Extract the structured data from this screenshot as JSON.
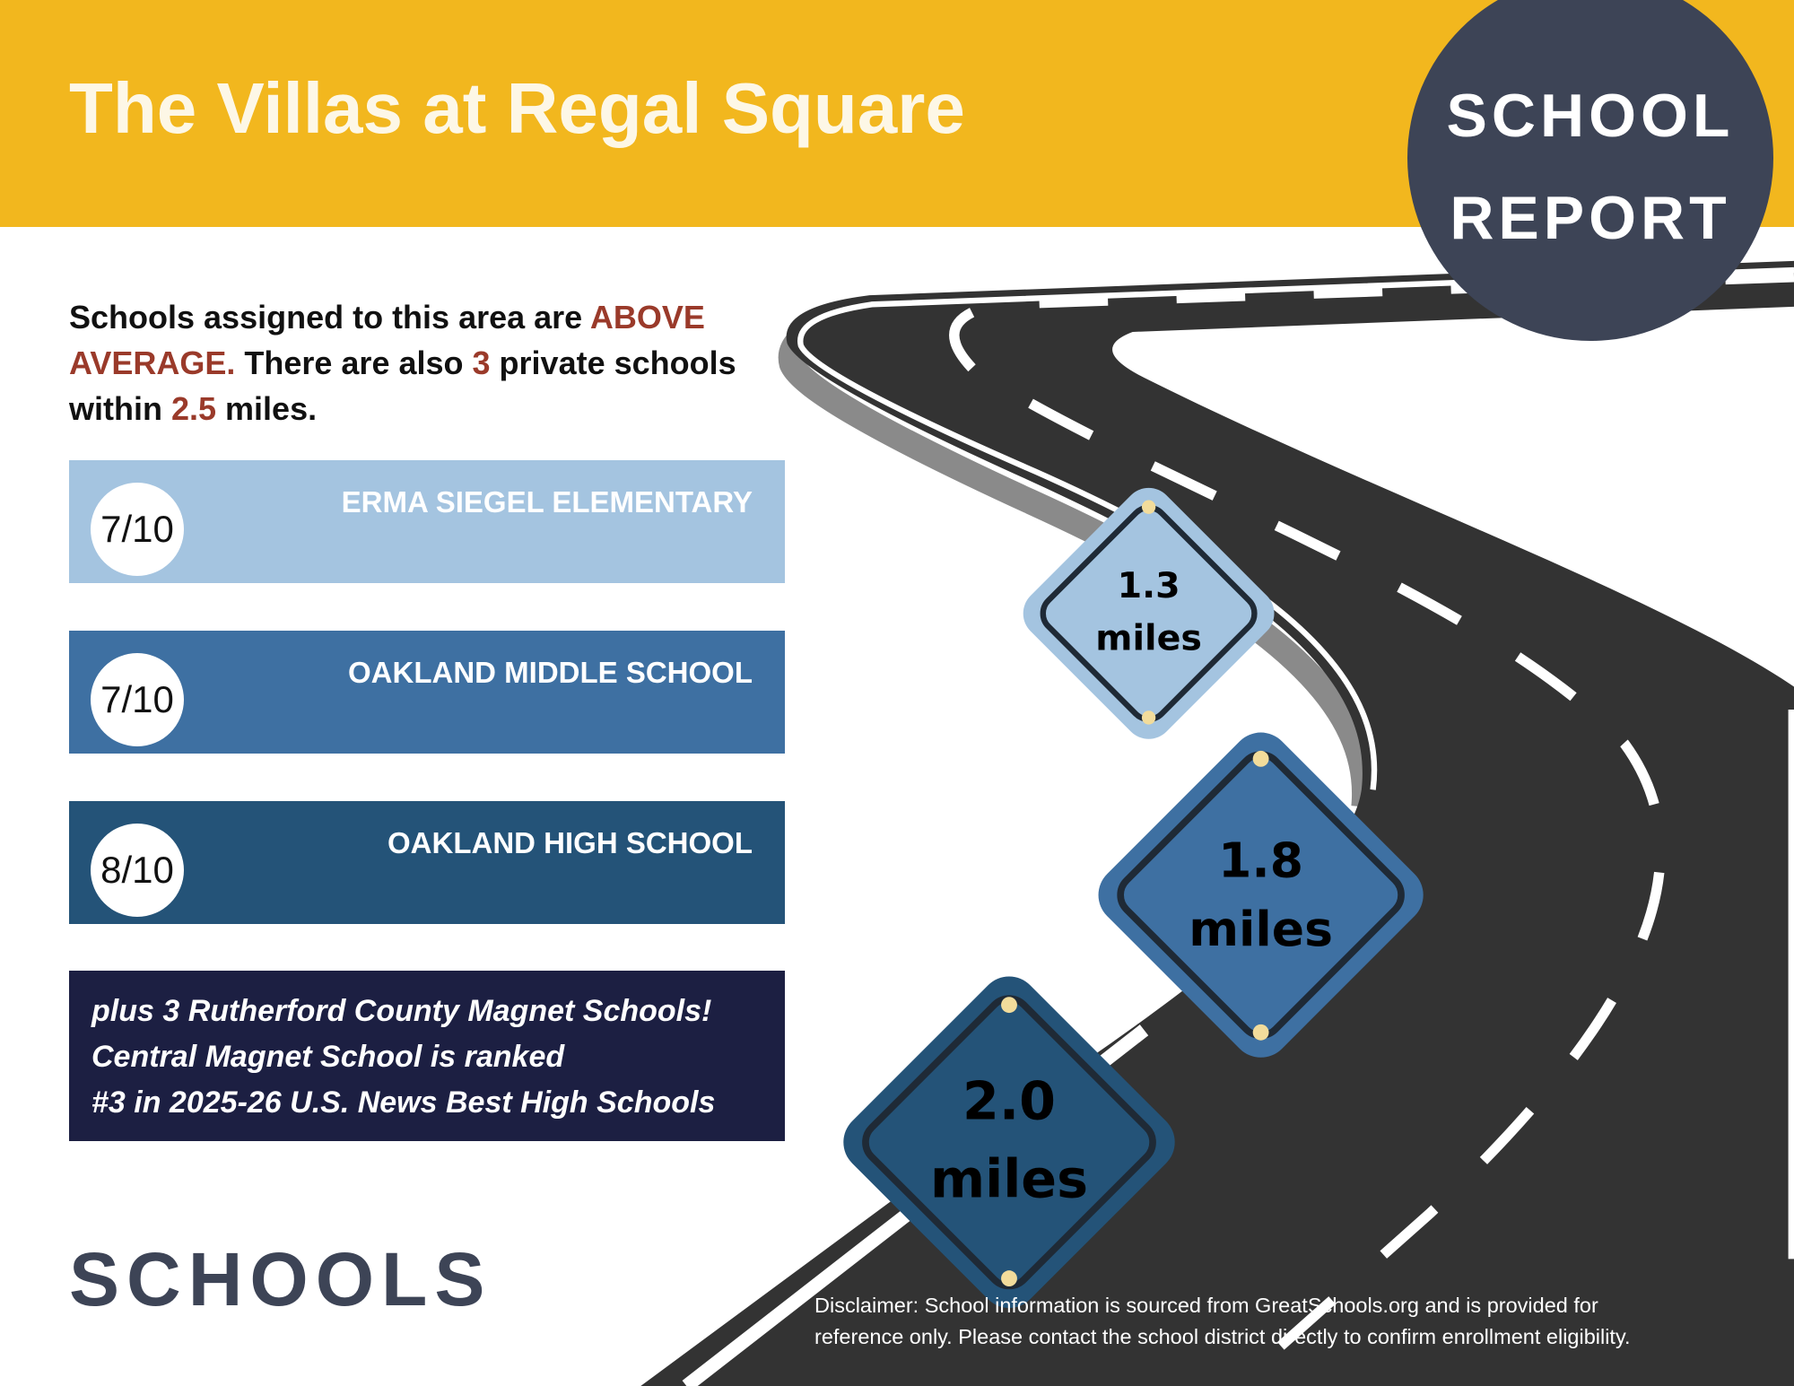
{
  "header": {
    "title": "The Villas at Regal Square",
    "badge_line1": "SCHOOL",
    "badge_line2": "REPORT"
  },
  "intro": {
    "part1": "Schools assigned to this area are ",
    "highlight1": "ABOVE AVERAGE.",
    "part2": " There are also ",
    "highlight2": "3",
    "part3": " private schools within ",
    "highlight3": "2.5",
    "part4": " miles."
  },
  "schools": [
    {
      "score": "7/10",
      "name": "ERMA SIEGEL ELEMENTARY",
      "distance": "1.3",
      "unit": "miles",
      "color": "#A4C4E0"
    },
    {
      "score": "7/10",
      "name": "OAKLAND MIDDLE SCHOOL",
      "distance": "1.8",
      "unit": "miles",
      "color": "#3E70A2"
    },
    {
      "score": "8/10",
      "name": "OAKLAND HIGH SCHOOL",
      "distance": "2.0",
      "unit": "miles",
      "color": "#245378"
    }
  ],
  "magnet": {
    "line1": "plus 3 Rutherford County Magnet Schools!",
    "line2": "Central Magnet School is ranked",
    "line3": "#3 in 2025-26 U.S. News Best High Schools"
  },
  "footer": {
    "section_title": "SCHOOLS",
    "disclaimer_line1": "Disclaimer: School information is sourced from GreatSchools.org and is provided for",
    "disclaimer_line2": "reference only. Please contact the school district directly to confirm enrollment eligibility."
  },
  "colors": {
    "header": "#F2B71E",
    "badge": "#3D4456",
    "highlight": "#9A3A2A",
    "magnet_box": "#1C1F42"
  }
}
